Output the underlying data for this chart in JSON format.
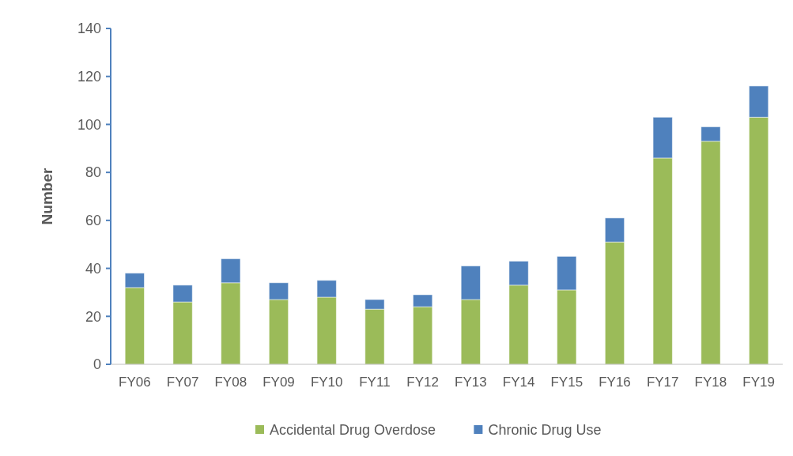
{
  "chart_data": {
    "type": "bar",
    "stacked": true,
    "ylabel": "Number",
    "categories": [
      "FY06",
      "FY07",
      "FY08",
      "FY09",
      "FY10",
      "FY11",
      "FY12",
      "FY13",
      "FY14",
      "FY15",
      "FY16",
      "FY17",
      "FY18",
      "FY19"
    ],
    "series": [
      {
        "name": "Accidental Drug Overdose",
        "color": "#9bbb59",
        "values": [
          32,
          26,
          34,
          27,
          28,
          23,
          24,
          27,
          33,
          31,
          51,
          86,
          93,
          103
        ]
      },
      {
        "name": "Chronic Drug Use",
        "color": "#4f81bd",
        "values": [
          6,
          7,
          10,
          7,
          7,
          4,
          5,
          14,
          10,
          14,
          10,
          17,
          6,
          13
        ]
      }
    ],
    "ylim": [
      0,
      140
    ],
    "yticks": [
      0,
      20,
      40,
      60,
      80,
      100,
      120,
      140
    ],
    "grid": false,
    "legend": "bottom"
  }
}
